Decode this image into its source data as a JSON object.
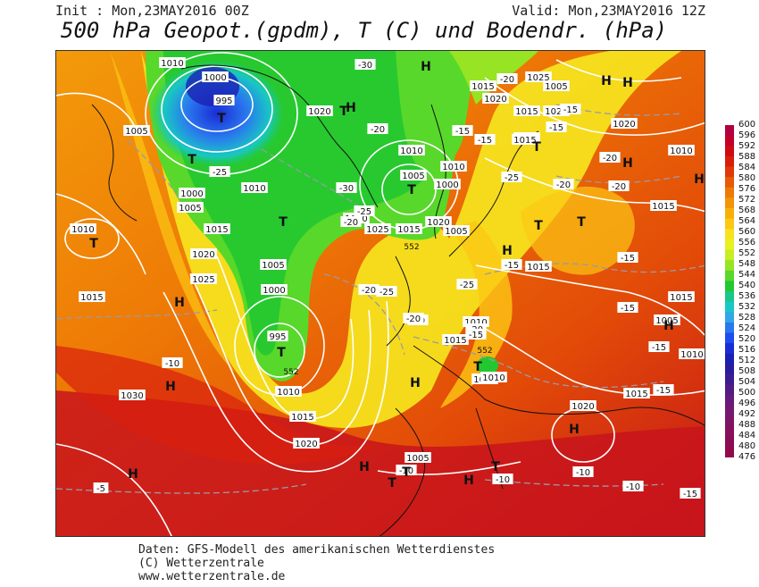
{
  "header": {
    "init": "Init : Mon,23MAY2016 00Z",
    "valid": "Valid: Mon,23MAY2016 12Z",
    "title": "500 hPa Geopot.(gpdm), T (C) und Bodendr. (hPa)"
  },
  "footer": {
    "line1": "Daten: GFS-Modell des amerikanischen Wetterdienstes",
    "line2": "(C) Wetterzentrale",
    "line3": "www.wetterzentrale.de"
  },
  "scale": {
    "labels": [
      "600",
      "596",
      "592",
      "588",
      "584",
      "580",
      "576",
      "572",
      "568",
      "564",
      "560",
      "556",
      "552",
      "548",
      "544",
      "540",
      "536",
      "532",
      "528",
      "524",
      "520",
      "516",
      "512",
      "508",
      "504",
      "500",
      "496",
      "492",
      "488",
      "484",
      "480",
      "476"
    ],
    "colors": [
      "#b00040",
      "#c4002a",
      "#d00a12",
      "#d81e0a",
      "#e03a08",
      "#e85a06",
      "#ee7a06",
      "#f29608",
      "#f7b00a",
      "#fcc814",
      "#f6e21e",
      "#e9f020",
      "#c6ee22",
      "#96e424",
      "#58d82a",
      "#22c830",
      "#18c888",
      "#18c8c4",
      "#30a8e8",
      "#2a78ee",
      "#1e4cf0",
      "#1a2cd6",
      "#1a20b4",
      "#2a1c9c",
      "#3e1c90",
      "#521c84",
      "#661a7c",
      "#741872",
      "#7e1468",
      "#86105e",
      "#8c0c54",
      "#920a4c"
    ]
  },
  "map": {
    "pressure_labels": [
      "1010",
      "1000",
      "995",
      "1005",
      "1000",
      "1005",
      "1010",
      "1015",
      "1020",
      "1020",
      "1025",
      "1015",
      "1010",
      "1005",
      "1010",
      "1025",
      "1020",
      "1015",
      "1015",
      "1015",
      "1010",
      "1005",
      "1015",
      "1020",
      "1020",
      "1025",
      "1015",
      "995",
      "1000",
      "1005",
      "1010",
      "1015",
      "1020",
      "1005",
      "1010",
      "1015",
      "1010",
      "1010",
      "1015",
      "1020",
      "1005",
      "1010",
      "1015",
      "1020",
      "1015",
      "1010",
      "1025",
      "1030",
      "1000",
      "1005",
      "1015"
    ],
    "temp_labels": [
      "-30",
      "-25",
      "-30",
      "-25",
      "-20",
      "-25",
      "-20",
      "-20",
      "-25",
      "-20",
      "-20",
      "-20",
      "-15",
      "-15",
      "-20",
      "-25",
      "-15",
      "-20",
      "-15",
      "-20",
      "-20",
      "-15",
      "-15",
      "-15",
      "-15",
      "-10",
      "-15",
      "-5",
      "-10",
      "-10",
      "-10",
      "-10",
      "-15",
      "-15"
    ],
    "geopot_labels": [
      "552",
      "552",
      "552"
    ],
    "high_marker": "H",
    "low_marker": "T"
  }
}
